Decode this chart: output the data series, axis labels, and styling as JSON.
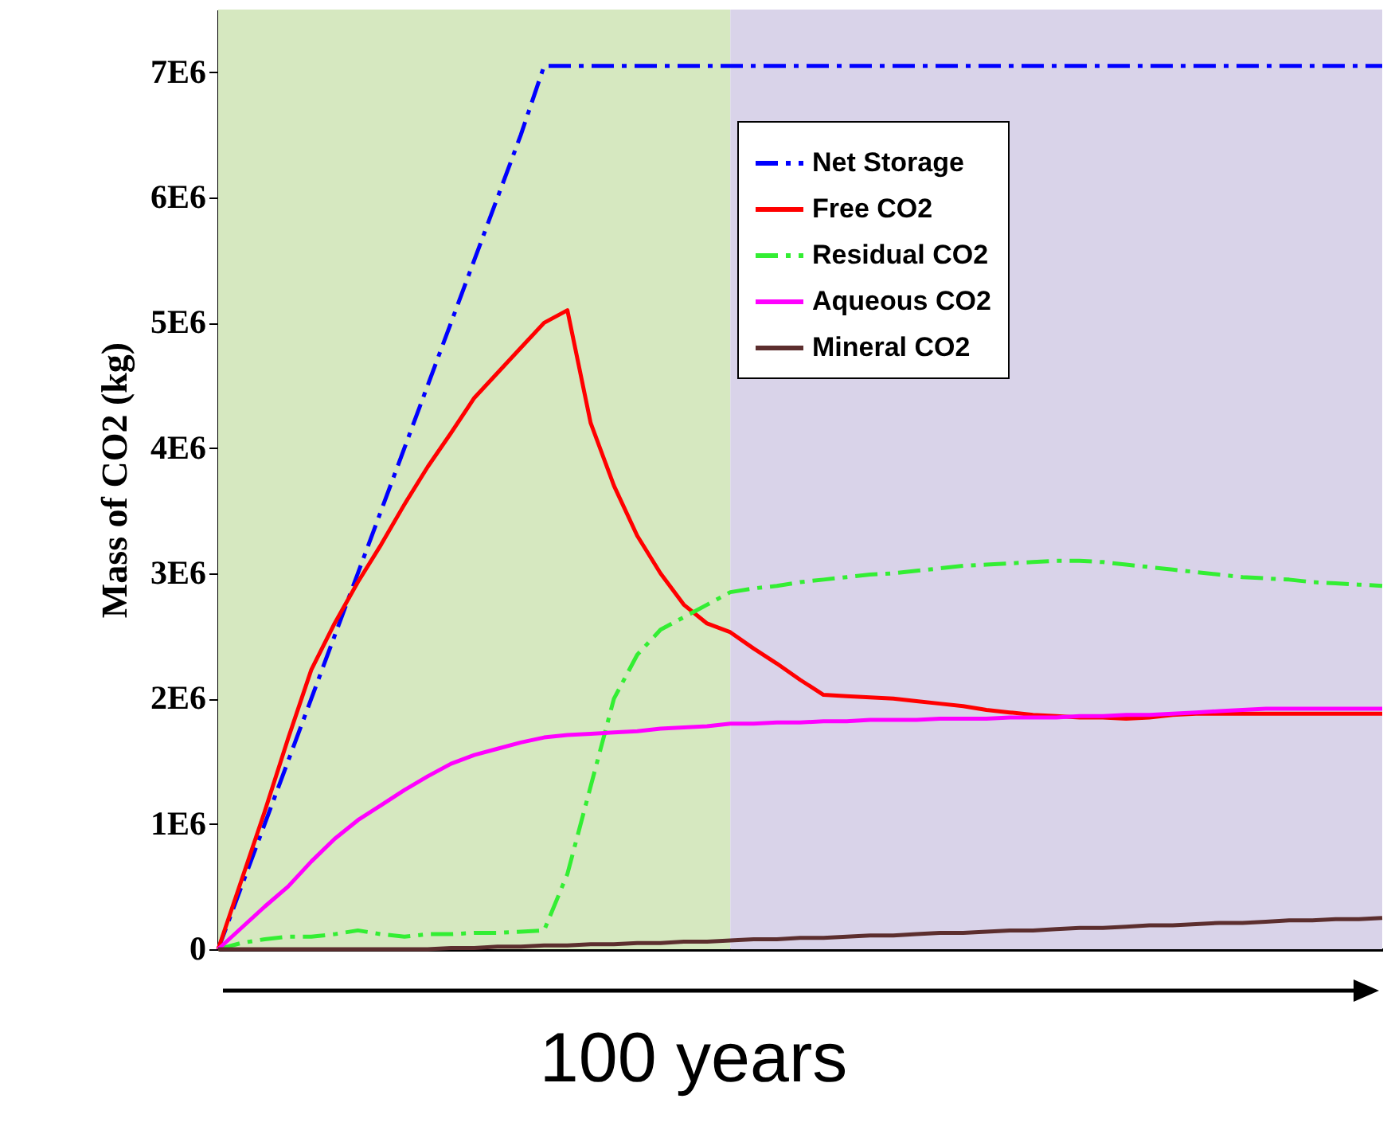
{
  "chart_data": {
    "type": "line",
    "xlabel": "100 years",
    "ylabel": "Mass of CO2 (kg)",
    "categories": [
      null,
      null,
      null,
      null,
      null,
      null,
      null,
      null,
      null,
      null,
      null,
      null,
      null,
      null,
      null,
      null,
      null,
      null,
      null,
      null,
      null,
      null,
      null,
      null,
      null,
      null,
      null,
      null,
      null,
      null,
      null,
      null,
      null,
      null,
      null,
      null,
      null,
      null,
      null,
      null,
      null,
      null,
      null,
      null,
      null,
      null,
      null,
      null,
      null,
      null,
      null
    ],
    "ylim": [
      0,
      7500000
    ],
    "yticks": [
      0,
      {
        "value": 1000000,
        "label": "1E6"
      },
      {
        "value": 2000000,
        "label": "2E6"
      },
      {
        "value": 3000000,
        "label": "3E6"
      },
      {
        "value": 4000000,
        "label": "4E6"
      },
      {
        "value": 5000000,
        "label": "5E6"
      },
      {
        "value": 6000000,
        "label": "6E6"
      },
      {
        "value": 7000000,
        "label": "7E6"
      }
    ],
    "tick_labels": "y",
    "grid": false,
    "legend": "top right",
    "series": [
      {
        "name": "Net Storage",
        "color": "#0000ff",
        "line_style": "dashed",
        "values": [
          0,
          500000,
          1000000,
          1500000,
          2000000,
          2500000,
          3000000,
          3500000,
          4000000,
          4500000,
          5000000,
          5500000,
          6000000,
          6500000,
          7050000,
          7050000,
          7050000,
          7050000,
          7050000,
          7050000,
          7050000,
          7050000,
          7050000,
          7050000,
          7050000,
          7050000,
          7050000,
          7050000,
          7050000,
          7050000,
          7050000,
          7050000,
          7050000,
          7050000,
          7050000,
          7050000,
          7050000,
          7050000,
          7050000,
          7050000,
          7050000,
          7050000,
          7050000,
          7050000,
          7050000,
          7050000,
          7050000,
          7050000,
          7050000,
          7050000,
          7050000
        ]
      },
      {
        "name": "Free CO2",
        "color": "#ff0000",
        "line_style": "solid",
        "values": [
          0,
          550000,
          1100000,
          1680000,
          2230000,
          2600000,
          2930000,
          3230000,
          3550000,
          3850000,
          4120000,
          4400000,
          4600000,
          4800000,
          5000000,
          5100000,
          4200000,
          3700000,
          3300000,
          3000000,
          2750000,
          2600000,
          2530000,
          2400000,
          2280000,
          2150000,
          2030000,
          2020000,
          2010000,
          2000000,
          1980000,
          1960000,
          1940000,
          1910000,
          1890000,
          1870000,
          1860000,
          1850000,
          1850000,
          1840000,
          1850000,
          1870000,
          1880000,
          1880000,
          1880000,
          1880000,
          1880000,
          1880000,
          1880000,
          1880000,
          1880000
        ]
      },
      {
        "name": "Residual CO2",
        "color": "#33ee33",
        "line_style": "dashed",
        "values": [
          0,
          50000,
          80000,
          100000,
          100000,
          120000,
          150000,
          120000,
          100000,
          120000,
          120000,
          130000,
          130000,
          140000,
          150000,
          600000,
          1300000,
          2000000,
          2350000,
          2550000,
          2650000,
          2750000,
          2850000,
          2880000,
          2900000,
          2930000,
          2950000,
          2970000,
          2990000,
          3000000,
          3020000,
          3040000,
          3060000,
          3070000,
          3080000,
          3090000,
          3100000,
          3100000,
          3090000,
          3070000,
          3050000,
          3030000,
          3010000,
          2990000,
          2970000,
          2960000,
          2950000,
          2930000,
          2920000,
          2910000,
          2900000
        ]
      },
      {
        "name": "Aqueous CO2",
        "color": "#ff00ff",
        "line_style": "solid",
        "values": [
          0,
          170000,
          340000,
          500000,
          700000,
          880000,
          1030000,
          1150000,
          1270000,
          1380000,
          1480000,
          1550000,
          1600000,
          1650000,
          1690000,
          1710000,
          1720000,
          1730000,
          1740000,
          1760000,
          1770000,
          1780000,
          1800000,
          1800000,
          1810000,
          1810000,
          1820000,
          1820000,
          1830000,
          1830000,
          1830000,
          1840000,
          1840000,
          1840000,
          1850000,
          1850000,
          1850000,
          1860000,
          1860000,
          1870000,
          1870000,
          1880000,
          1890000,
          1900000,
          1910000,
          1920000,
          1920000,
          1920000,
          1920000,
          1920000,
          1920000
        ]
      },
      {
        "name": "Mineral CO2",
        "color": "#5c2e2e",
        "line_style": "solid",
        "values": [
          0,
          0,
          0,
          0,
          0,
          0,
          0,
          0,
          0,
          0,
          10000,
          10000,
          20000,
          20000,
          30000,
          30000,
          40000,
          40000,
          50000,
          50000,
          60000,
          60000,
          70000,
          80000,
          80000,
          90000,
          90000,
          100000,
          110000,
          110000,
          120000,
          130000,
          130000,
          140000,
          150000,
          150000,
          160000,
          170000,
          170000,
          180000,
          190000,
          190000,
          200000,
          210000,
          210000,
          220000,
          230000,
          230000,
          240000,
          240000,
          250000
        ]
      }
    ]
  }
}
